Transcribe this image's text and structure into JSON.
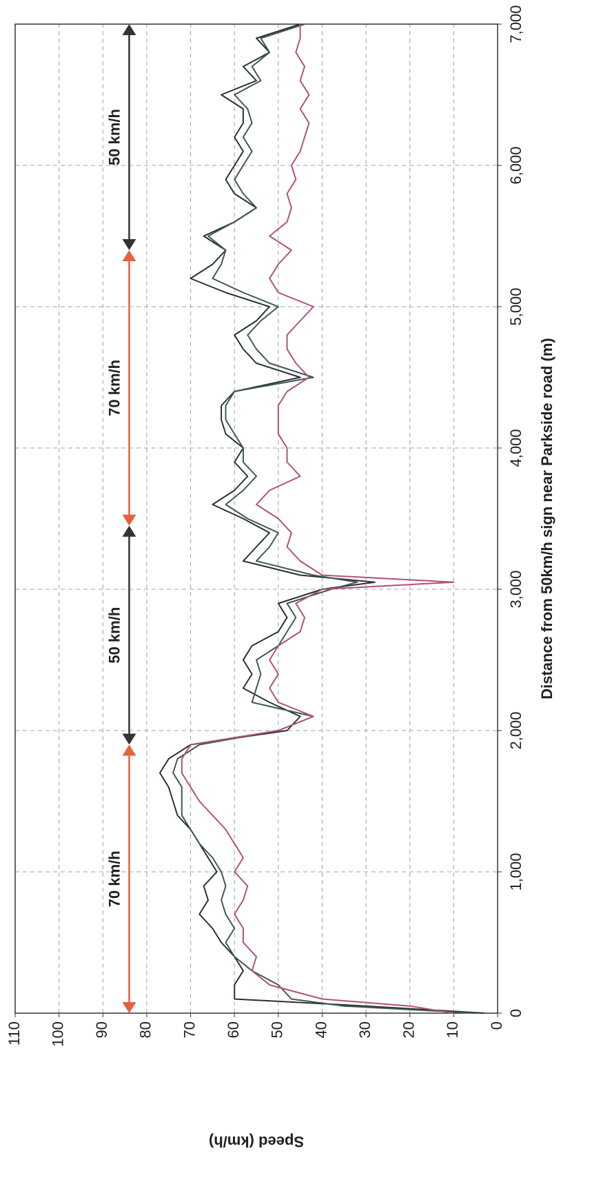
{
  "chart_data": {
    "type": "line",
    "xlabel": "Distance from 50km/h sign near Parkside road (m)",
    "ylabel": "Speed (km/h)",
    "x": [
      0,
      50,
      100,
      200,
      300,
      400,
      500,
      600,
      700,
      800,
      900,
      1000,
      1100,
      1200,
      1300,
      1400,
      1500,
      1600,
      1700,
      1800,
      1900,
      2000,
      2100,
      2200,
      2300,
      2400,
      2500,
      2600,
      2700,
      2800,
      2900,
      3000,
      3050,
      3100,
      3200,
      3300,
      3400,
      3500,
      3600,
      3700,
      3800,
      3900,
      4000,
      4100,
      4200,
      4300,
      4400,
      4500,
      4600,
      4700,
      4800,
      4900,
      5000,
      5100,
      5200,
      5300,
      5400,
      5500,
      5600,
      5700,
      5800,
      5900,
      6000,
      6100,
      6200,
      6300,
      6400,
      6500,
      6600,
      6700,
      6800,
      6900,
      7000
    ],
    "series": [
      {
        "color": "#2b2f3a",
        "values": [
          3,
          30,
          60,
          60,
          58,
          60,
          63,
          65,
          68,
          66,
          67,
          64,
          66,
          68,
          70,
          73,
          74,
          75,
          77,
          75,
          70,
          48,
          45,
          52,
          58,
          56,
          58,
          56,
          50,
          48,
          50,
          40,
          28,
          45,
          58,
          55,
          52,
          58,
          65,
          60,
          57,
          60,
          58,
          62,
          63,
          63,
          60,
          45,
          55,
          58,
          60,
          55,
          52,
          62,
          70,
          65,
          62,
          67,
          60,
          55,
          60,
          62,
          60,
          58,
          60,
          58,
          58,
          63,
          55,
          58,
          52,
          55,
          45
        ]
      },
      {
        "color": "#3d5a4a",
        "values": [
          5,
          35,
          47,
          50,
          56,
          60,
          62,
          60,
          62,
          63,
          62,
          63,
          65,
          68,
          70,
          72,
          72,
          72,
          74,
          73,
          68,
          50,
          42,
          56,
          55,
          54,
          55,
          50,
          48,
          46,
          48,
          38,
          32,
          42,
          55,
          52,
          50,
          57,
          62,
          58,
          55,
          58,
          58,
          60,
          62,
          62,
          60,
          42,
          52,
          55,
          57,
          54,
          50,
          58,
          65,
          63,
          62,
          66,
          60,
          55,
          58,
          60,
          58,
          56,
          58,
          56,
          57,
          60,
          54,
          56,
          52,
          54,
          44
        ]
      },
      {
        "color": "#b0507a",
        "values": [
          10,
          20,
          40,
          52,
          56,
          55,
          58,
          58,
          60,
          58,
          57,
          60,
          58,
          60,
          62,
          65,
          68,
          70,
          72,
          72,
          70,
          50,
          42,
          50,
          52,
          50,
          52,
          50,
          45,
          44,
          46,
          40,
          10,
          40,
          45,
          48,
          47,
          50,
          55,
          52,
          45,
          48,
          48,
          50,
          50,
          50,
          48,
          43,
          46,
          48,
          48,
          45,
          42,
          50,
          52,
          50,
          47,
          52,
          48,
          47,
          48,
          46,
          47,
          45,
          44,
          43,
          45,
          43,
          45,
          44,
          46,
          45,
          45
        ]
      }
    ],
    "xlim": [
      0,
      7000
    ],
    "ylim": [
      0,
      110
    ],
    "xticks": [
      0,
      {
        "value": 1000,
        "label": "1,000"
      },
      {
        "value": 2000,
        "label": "2,000"
      },
      {
        "value": 3000,
        "label": "3,000"
      },
      {
        "value": 4000,
        "label": "4,000"
      },
      {
        "value": 5000,
        "label": "5,000"
      },
      {
        "value": 6000,
        "label": "6,000"
      },
      {
        "value": 7000,
        "label": "7,000"
      }
    ],
    "yticks": [
      0,
      10,
      20,
      30,
      40,
      50,
      60,
      70,
      80,
      90,
      100,
      110
    ],
    "grid": true,
    "annotations": [
      {
        "text": "70 km/h",
        "x": [
          0,
          1900
        ],
        "y": 84,
        "color": "#e8603c"
      },
      {
        "text": "50 km/h",
        "x": [
          1900,
          3450
        ],
        "y": 84,
        "color": "#333333"
      },
      {
        "text": "70 km/h",
        "x": [
          3450,
          5400
        ],
        "y": 84,
        "color": "#e8603c"
      },
      {
        "text": "50 km/h",
        "x": [
          5400,
          7000
        ],
        "y": 84,
        "color": "#333333"
      }
    ]
  }
}
